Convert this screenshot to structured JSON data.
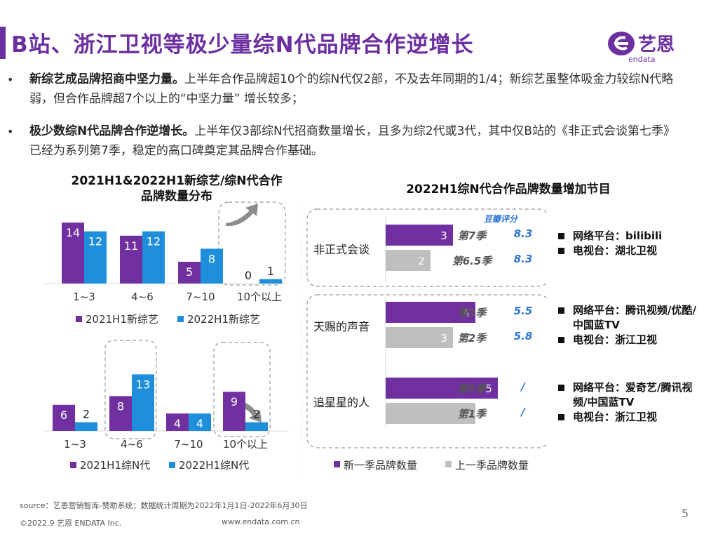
{
  "title": "B站、浙江卫视等极少量综N代品牌合作逆增长",
  "logo": {
    "text": "艺恩",
    "sub": "endata"
  },
  "bullets": [
    {
      "lead": "新综艺成品牌招商中坚力量。",
      "text": "上半年合作品牌超10个的综N代仅2部，不及去年同期的1/4；新综艺虽整体吸金力较综N代略弱，但合作品牌超7个以上的“中坚力量” 增长较多；"
    },
    {
      "lead": "极少数综N代品牌合作逆增长。",
      "text": "上半年仅3部综N代招商数量增长，且多为综2代或3代，其中仅B站的《非正式会谈第七季》已经为系列第7季，稳定的高口碑奠定其品牌合作基础。"
    }
  ],
  "colors": {
    "purple": "#7030a0",
    "blue": "#1f8fdc",
    "grey": "#bfbfbf",
    "score_blue": "#2e75d6"
  },
  "chart_data": [
    {
      "type": "bar",
      "title": "2021H1&2022H1新综艺/综N代合作品牌数量分布",
      "categories": [
        "1~3",
        "4~6",
        "7~10",
        "10个以上"
      ],
      "series": [
        {
          "name": "2021H1新综艺",
          "values": [
            14,
            11,
            5,
            0
          ]
        },
        {
          "name": "2022H1新综艺",
          "values": [
            12,
            12,
            8,
            1
          ]
        }
      ]
    },
    {
      "type": "bar",
      "title": "",
      "categories": [
        "1~3",
        "4~6",
        "7~10",
        "10个以上"
      ],
      "series": [
        {
          "name": "2021H1综N代",
          "values": [
            6,
            8,
            4,
            9
          ]
        },
        {
          "name": "2022H1综N代",
          "values": [
            2,
            13,
            4,
            2
          ]
        }
      ]
    },
    {
      "type": "bar",
      "orientation": "horizontal",
      "title": "2022H1综N代合作品牌数量增加节目",
      "score_header": "豆瓣评分",
      "shows": [
        {
          "name": "非正式会谈",
          "new": {
            "value": 3,
            "season": "第7季",
            "score": "8.3"
          },
          "prev": {
            "value": 2,
            "season": "第6.5季",
            "score": "8.3"
          }
        },
        {
          "name": "天赐的声音",
          "new": {
            "value": 4,
            "season": "第3季",
            "score": "5.5"
          },
          "prev": {
            "value": 3,
            "season": "第2季",
            "score": "5.8"
          }
        },
        {
          "name": "追星星的人",
          "new": {
            "value": 5,
            "season": "第2季",
            "score": "/"
          },
          "prev": {
            "value": 4,
            "season": "第1季",
            "score": "/"
          }
        }
      ],
      "series": [
        {
          "name": "新一季品牌数量"
        },
        {
          "name": "上一季品牌数量"
        }
      ]
    }
  ],
  "platforms": [
    [
      "网络平台：bilibili",
      "电视台：湖北卫视"
    ],
    [
      "网络平台：腾讯视频/优酷/中国蓝TV",
      "电视台：浙江卫视"
    ],
    [
      "网络平台：爱奇艺/腾讯视频/中国蓝TV",
      "电视台：浙江卫视"
    ]
  ],
  "footer": {
    "source": "source：艺恩营销智库-赞助系统；数据统计周期为2022年1月1日-2022年6月30日",
    "copyright": "©2022.9 艺恩 ENDATA Inc.",
    "url": "www.endata.com.cn",
    "page": "5"
  }
}
